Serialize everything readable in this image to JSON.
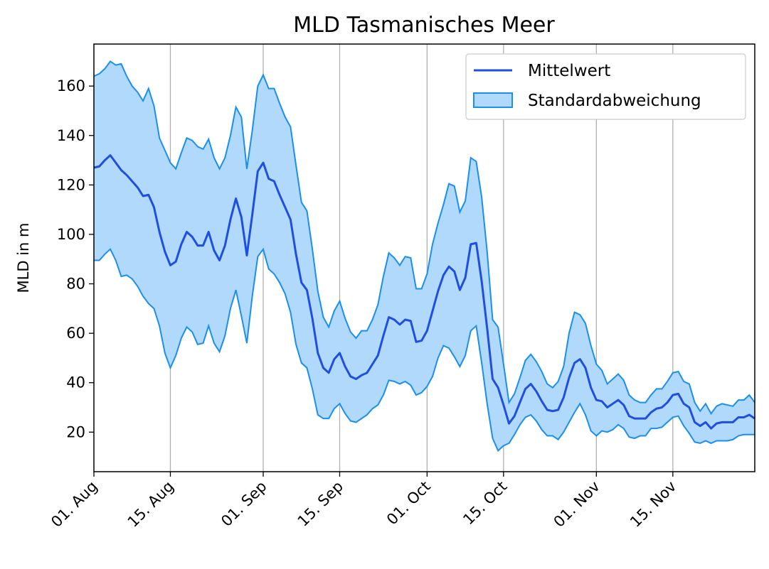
{
  "chart_data": {
    "type": "line",
    "title": "MLD Tasmanisches Meer",
    "xlabel": "",
    "ylabel": "MLD in m",
    "x_start": "2023-08-01",
    "x_end": "2023-11-30",
    "xlim": [
      "2023-08-01",
      "2023-11-30"
    ],
    "ylim": [
      4,
      177
    ],
    "y_ticks": [
      20,
      40,
      60,
      80,
      100,
      120,
      140,
      160
    ],
    "x_ticks": [
      {
        "date": "2023-08-01",
        "label": "01. Aug"
      },
      {
        "date": "2023-08-15",
        "label": "15. Aug"
      },
      {
        "date": "2023-09-01",
        "label": "01. Sep"
      },
      {
        "date": "2023-09-15",
        "label": "15. Sep"
      },
      {
        "date": "2023-10-01",
        "label": "01. Oct"
      },
      {
        "date": "2023-10-15",
        "label": "15. Oct"
      },
      {
        "date": "2023-11-01",
        "label": "01. Nov"
      },
      {
        "date": "2023-11-15",
        "label": "15. Nov"
      }
    ],
    "grid": "vertical",
    "legend": "top-right",
    "colors": {
      "mean": "#1f4fe0",
      "band_fill": "#b1d9fb",
      "band_edge": "#1a8ff0",
      "grid": "#b0b0b0"
    },
    "series": [
      {
        "name": "Mittelwert",
        "kind": "line",
        "points": [
          [
            "2023-08-01",
            127
          ],
          [
            "2023-08-02",
            127.5
          ],
          [
            "2023-08-03",
            130
          ],
          [
            "2023-08-04",
            132
          ],
          [
            "2023-08-05",
            129
          ],
          [
            "2023-08-06",
            126
          ],
          [
            "2023-08-07",
            124
          ],
          [
            "2023-08-08",
            121.5
          ],
          [
            "2023-08-09",
            119
          ],
          [
            "2023-08-10",
            115.5
          ],
          [
            "2023-08-11",
            116
          ],
          [
            "2023-08-12",
            111
          ],
          [
            "2023-08-13",
            101
          ],
          [
            "2023-08-14",
            93
          ],
          [
            "2023-08-15",
            87.5
          ],
          [
            "2023-08-16",
            89
          ],
          [
            "2023-08-17",
            96
          ],
          [
            "2023-08-18",
            101
          ],
          [
            "2023-08-19",
            99
          ],
          [
            "2023-08-20",
            95.5
          ],
          [
            "2023-08-21",
            95.5
          ],
          [
            "2023-08-22",
            101
          ],
          [
            "2023-08-23",
            93.5
          ],
          [
            "2023-08-24",
            89.5
          ],
          [
            "2023-08-25",
            95.5
          ],
          [
            "2023-08-26",
            106
          ],
          [
            "2023-08-27",
            114.5
          ],
          [
            "2023-08-28",
            107
          ],
          [
            "2023-08-29",
            91.5
          ],
          [
            "2023-08-30",
            108
          ],
          [
            "2023-08-31",
            125.5
          ],
          [
            "2023-09-01",
            129
          ],
          [
            "2023-09-02",
            122.5
          ],
          [
            "2023-09-03",
            121.5
          ],
          [
            "2023-09-04",
            116
          ],
          [
            "2023-09-05",
            111
          ],
          [
            "2023-09-06",
            106
          ],
          [
            "2023-09-07",
            92
          ],
          [
            "2023-09-08",
            80.5
          ],
          [
            "2023-09-09",
            77.5
          ],
          [
            "2023-09-10",
            66
          ],
          [
            "2023-09-11",
            52
          ],
          [
            "2023-09-12",
            46
          ],
          [
            "2023-09-13",
            44
          ],
          [
            "2023-09-14",
            49.5
          ],
          [
            "2023-09-15",
            52
          ],
          [
            "2023-09-16",
            46.5
          ],
          [
            "2023-09-17",
            42.5
          ],
          [
            "2023-09-18",
            41.5
          ],
          [
            "2023-09-19",
            43
          ],
          [
            "2023-09-20",
            44
          ],
          [
            "2023-09-21",
            47.5
          ],
          [
            "2023-09-22",
            51
          ],
          [
            "2023-09-23",
            59
          ],
          [
            "2023-09-24",
            66.5
          ],
          [
            "2023-09-25",
            65.5
          ],
          [
            "2023-09-26",
            63.5
          ],
          [
            "2023-09-27",
            65.5
          ],
          [
            "2023-09-28",
            65
          ],
          [
            "2023-09-29",
            56.5
          ],
          [
            "2023-09-30",
            57
          ],
          [
            "2023-10-01",
            61
          ],
          [
            "2023-10-02",
            69
          ],
          [
            "2023-10-03",
            77
          ],
          [
            "2023-10-04",
            83.5
          ],
          [
            "2023-10-05",
            87
          ],
          [
            "2023-10-06",
            85
          ],
          [
            "2023-10-07",
            77.5
          ],
          [
            "2023-10-08",
            82.5
          ],
          [
            "2023-10-09",
            96
          ],
          [
            "2023-10-10",
            96.5
          ],
          [
            "2023-10-11",
            81
          ],
          [
            "2023-10-12",
            62
          ],
          [
            "2023-10-13",
            41.5
          ],
          [
            "2023-10-14",
            38
          ],
          [
            "2023-10-15",
            31
          ],
          [
            "2023-10-16",
            23.5
          ],
          [
            "2023-10-17",
            26.5
          ],
          [
            "2023-10-18",
            32
          ],
          [
            "2023-10-19",
            37.5
          ],
          [
            "2023-10-20",
            39.5
          ],
          [
            "2023-10-21",
            36.5
          ],
          [
            "2023-10-22",
            32.5
          ],
          [
            "2023-10-23",
            29
          ],
          [
            "2023-10-24",
            28.5
          ],
          [
            "2023-10-25",
            29
          ],
          [
            "2023-10-26",
            34
          ],
          [
            "2023-10-27",
            42
          ],
          [
            "2023-10-28",
            48
          ],
          [
            "2023-10-29",
            49.5
          ],
          [
            "2023-10-30",
            46
          ],
          [
            "2023-10-31",
            38
          ],
          [
            "2023-11-01",
            33
          ],
          [
            "2023-11-02",
            32.5
          ],
          [
            "2023-11-03",
            30
          ],
          [
            "2023-11-04",
            31.5
          ],
          [
            "2023-11-05",
            33
          ],
          [
            "2023-11-06",
            31
          ],
          [
            "2023-11-07",
            26.5
          ],
          [
            "2023-11-08",
            25.5
          ],
          [
            "2023-11-09",
            25.5
          ],
          [
            "2023-11-10",
            25.5
          ],
          [
            "2023-11-11",
            28
          ],
          [
            "2023-11-12",
            29.5
          ],
          [
            "2023-11-13",
            30
          ],
          [
            "2023-11-14",
            32
          ],
          [
            "2023-11-15",
            35
          ],
          [
            "2023-11-16",
            35.5
          ],
          [
            "2023-11-17",
            31.5
          ],
          [
            "2023-11-18",
            30
          ],
          [
            "2023-11-19",
            24
          ],
          [
            "2023-11-20",
            22.5
          ],
          [
            "2023-11-21",
            24
          ],
          [
            "2023-11-22",
            21.5
          ],
          [
            "2023-11-23",
            23.5
          ],
          [
            "2023-11-24",
            24
          ],
          [
            "2023-11-25",
            24
          ],
          [
            "2023-11-26",
            24
          ],
          [
            "2023-11-27",
            26
          ],
          [
            "2023-11-28",
            26
          ],
          [
            "2023-11-29",
            27
          ],
          [
            "2023-11-30",
            25.5
          ]
        ]
      },
      {
        "name": "Standardabweichung",
        "kind": "band",
        "points": [
          [
            "2023-08-01",
            89.5,
            164
          ],
          [
            "2023-08-02",
            89.5,
            165
          ],
          [
            "2023-08-03",
            92,
            167
          ],
          [
            "2023-08-04",
            94,
            170
          ],
          [
            "2023-08-05",
            89.5,
            168.5
          ],
          [
            "2023-08-06",
            83,
            169
          ],
          [
            "2023-08-07",
            83.5,
            164
          ],
          [
            "2023-08-08",
            82,
            160
          ],
          [
            "2023-08-09",
            79,
            157.5
          ],
          [
            "2023-08-10",
            75,
            154
          ],
          [
            "2023-08-11",
            72,
            159
          ],
          [
            "2023-08-12",
            70,
            152
          ],
          [
            "2023-08-13",
            63,
            139
          ],
          [
            "2023-08-14",
            52,
            134
          ],
          [
            "2023-08-15",
            46,
            129
          ],
          [
            "2023-08-16",
            51,
            126.5
          ],
          [
            "2023-08-17",
            58,
            133
          ],
          [
            "2023-08-18",
            62.5,
            139
          ],
          [
            "2023-08-19",
            60.5,
            138
          ],
          [
            "2023-08-20",
            55.5,
            135.5
          ],
          [
            "2023-08-21",
            56,
            134.5
          ],
          [
            "2023-08-22",
            63,
            138.5
          ],
          [
            "2023-08-23",
            56,
            131
          ],
          [
            "2023-08-24",
            52.5,
            126.5
          ],
          [
            "2023-08-25",
            59,
            131
          ],
          [
            "2023-08-26",
            70,
            140
          ],
          [
            "2023-08-27",
            77.5,
            151.5
          ],
          [
            "2023-08-28",
            67,
            147.5
          ],
          [
            "2023-08-29",
            56,
            126.5
          ],
          [
            "2023-08-30",
            75,
            142
          ],
          [
            "2023-08-31",
            91,
            160
          ],
          [
            "2023-09-01",
            94,
            164.5
          ],
          [
            "2023-09-02",
            86,
            159
          ],
          [
            "2023-09-03",
            84,
            159
          ],
          [
            "2023-09-04",
            80.5,
            153
          ],
          [
            "2023-09-05",
            76,
            147.5
          ],
          [
            "2023-09-06",
            68.5,
            143.5
          ],
          [
            "2023-09-07",
            55.5,
            128
          ],
          [
            "2023-09-08",
            48,
            113
          ],
          [
            "2023-09-09",
            46,
            109.5
          ],
          [
            "2023-09-10",
            37.5,
            94
          ],
          [
            "2023-09-11",
            27,
            77
          ],
          [
            "2023-09-12",
            25.5,
            66.5
          ],
          [
            "2023-09-13",
            25.5,
            62.5
          ],
          [
            "2023-09-14",
            29.5,
            69
          ],
          [
            "2023-09-15",
            31.5,
            73
          ],
          [
            "2023-09-16",
            27.5,
            66
          ],
          [
            "2023-09-17",
            24.5,
            60.5
          ],
          [
            "2023-09-18",
            24,
            58
          ],
          [
            "2023-09-19",
            25.5,
            61
          ],
          [
            "2023-09-20",
            27,
            61
          ],
          [
            "2023-09-21",
            29.5,
            65.5
          ],
          [
            "2023-09-22",
            31,
            71.5
          ],
          [
            "2023-09-23",
            35,
            83
          ],
          [
            "2023-09-24",
            41,
            92.5
          ],
          [
            "2023-09-25",
            40.5,
            90.5
          ],
          [
            "2023-09-26",
            39.5,
            87.5
          ],
          [
            "2023-09-27",
            40.5,
            91
          ],
          [
            "2023-09-28",
            39,
            90.5
          ],
          [
            "2023-09-29",
            35,
            78
          ],
          [
            "2023-09-30",
            36,
            78
          ],
          [
            "2023-10-01",
            38.5,
            84
          ],
          [
            "2023-10-02",
            42.5,
            96
          ],
          [
            "2023-10-03",
            50,
            104.5
          ],
          [
            "2023-10-04",
            55,
            112
          ],
          [
            "2023-10-05",
            54,
            120.5
          ],
          [
            "2023-10-06",
            50.5,
            119.5
          ],
          [
            "2023-10-07",
            46.5,
            109
          ],
          [
            "2023-10-08",
            51,
            113.5
          ],
          [
            "2023-10-09",
            61,
            131
          ],
          [
            "2023-10-10",
            63,
            129.5
          ],
          [
            "2023-10-11",
            48,
            115
          ],
          [
            "2023-10-12",
            31.5,
            93
          ],
          [
            "2023-10-13",
            17.5,
            65.5
          ],
          [
            "2023-10-14",
            12.5,
            62.5
          ],
          [
            "2023-10-15",
            14.5,
            47.5
          ],
          [
            "2023-10-16",
            15.5,
            32
          ],
          [
            "2023-10-17",
            19,
            35.5
          ],
          [
            "2023-10-18",
            23,
            42
          ],
          [
            "2023-10-19",
            26,
            49
          ],
          [
            "2023-10-20",
            27,
            51.5
          ],
          [
            "2023-10-21",
            24.5,
            48.5
          ],
          [
            "2023-10-22",
            21,
            44.5
          ],
          [
            "2023-10-23",
            18.5,
            39.5
          ],
          [
            "2023-10-24",
            18.5,
            38
          ],
          [
            "2023-10-25",
            17,
            40.5
          ],
          [
            "2023-10-26",
            20,
            46.5
          ],
          [
            "2023-10-27",
            24,
            60
          ],
          [
            "2023-10-28",
            28,
            68.5
          ],
          [
            "2023-10-29",
            31.5,
            67.5
          ],
          [
            "2023-10-30",
            27,
            64
          ],
          [
            "2023-10-31",
            20.5,
            55
          ],
          [
            "2023-11-01",
            18.5,
            47.5
          ],
          [
            "2023-11-02",
            20.5,
            45
          ],
          [
            "2023-11-03",
            20,
            39.5
          ],
          [
            "2023-11-04",
            21,
            41.5
          ],
          [
            "2023-11-05",
            23,
            43.5
          ],
          [
            "2023-11-06",
            21.5,
            41
          ],
          [
            "2023-11-07",
            18,
            35
          ],
          [
            "2023-11-08",
            17.5,
            33
          ],
          [
            "2023-11-09",
            18.5,
            32
          ],
          [
            "2023-11-10",
            18.5,
            32
          ],
          [
            "2023-11-11",
            21.5,
            35
          ],
          [
            "2023-11-12",
            21.5,
            37.5
          ],
          [
            "2023-11-13",
            22,
            37.5
          ],
          [
            "2023-11-14",
            24,
            40.5
          ],
          [
            "2023-11-15",
            26,
            44
          ],
          [
            "2023-11-16",
            26.5,
            44.5
          ],
          [
            "2023-11-17",
            22.5,
            40.5
          ],
          [
            "2023-11-18",
            19.5,
            39.5
          ],
          [
            "2023-11-19",
            16,
            32
          ],
          [
            "2023-11-20",
            15.5,
            28.5
          ],
          [
            "2023-11-21",
            16.5,
            31.5
          ],
          [
            "2023-11-22",
            15.5,
            27.5
          ],
          [
            "2023-11-23",
            16.5,
            30.5
          ],
          [
            "2023-11-24",
            16.5,
            31.5
          ],
          [
            "2023-11-25",
            16.5,
            31
          ],
          [
            "2023-11-26",
            17,
            30.5
          ],
          [
            "2023-11-27",
            18.5,
            33
          ],
          [
            "2023-11-28",
            19,
            33
          ],
          [
            "2023-11-29",
            19,
            35
          ],
          [
            "2023-11-30",
            19,
            32
          ]
        ]
      }
    ]
  }
}
